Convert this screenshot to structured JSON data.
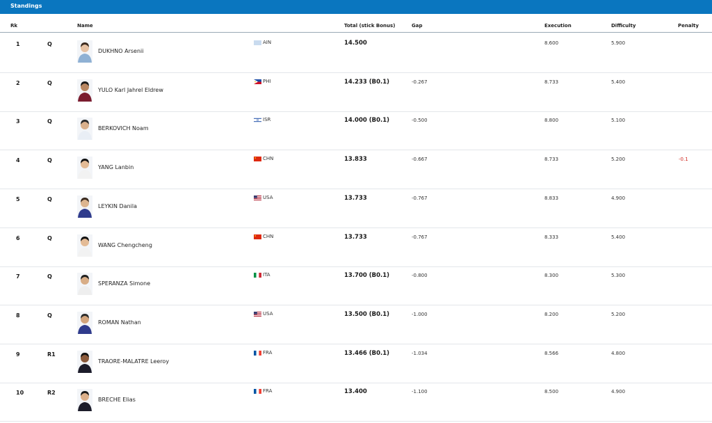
{
  "header": {
    "title": "Standings"
  },
  "columns": {
    "rk": "Rk",
    "name": "Name",
    "total": "Total (stick Bonus)",
    "gap": "Gap",
    "execution": "Execution",
    "difficulty": "Difficulty",
    "penalty": "Penalty"
  },
  "rows": [
    {
      "rk": "1",
      "q": "Q",
      "name": "DUKHNO Arsenii",
      "noc": "AIN",
      "flag": "AIN",
      "total": "14.500",
      "gap": "",
      "exec": "8.600",
      "diff": "5.900",
      "pen": "",
      "kit": "#8fb1d4",
      "skin": "#e6c2a4",
      "hair": "#3a2a1f"
    },
    {
      "rk": "2",
      "q": "Q",
      "name": "YULO Karl Jahrel Eldrew",
      "noc": "PHI",
      "flag": "PHI",
      "total": "14.233 (B0.1)",
      "gap": "-0.267",
      "exec": "8.733",
      "diff": "5.400",
      "pen": "",
      "kit": "#7a1c2f",
      "skin": "#b98762",
      "hair": "#1a1a1a"
    },
    {
      "rk": "3",
      "q": "Q",
      "name": "BERKOVICH Noam",
      "noc": "ISR",
      "flag": "ISR",
      "total": "14.000 (B0.1)",
      "gap": "-0.500",
      "exec": "8.800",
      "diff": "5.100",
      "pen": "",
      "kit": "#e9eef5",
      "skin": "#d9b08c",
      "hair": "#2a2a2a"
    },
    {
      "rk": "4",
      "q": "Q",
      "name": "YANG Lanbin",
      "noc": "CHN",
      "flag": "CHN",
      "total": "13.833",
      "gap": "-0.667",
      "exec": "8.733",
      "diff": "5.200",
      "pen": "-0.1",
      "kit": "#f2f2f2",
      "skin": "#e3bb96",
      "hair": "#111111"
    },
    {
      "rk": "5",
      "q": "Q",
      "name": "LEYKIN Danila",
      "noc": "USA",
      "flag": "USA",
      "total": "13.733",
      "gap": "-0.767",
      "exec": "8.833",
      "diff": "4.900",
      "pen": "",
      "kit": "#2f3b8c",
      "skin": "#dcb590",
      "hair": "#3a2a1f"
    },
    {
      "rk": "6",
      "q": "Q",
      "name": "WANG Chengcheng",
      "noc": "CHN",
      "flag": "CHN",
      "total": "13.733",
      "gap": "-0.767",
      "exec": "8.333",
      "diff": "5.400",
      "pen": "",
      "kit": "#f2f2f2",
      "skin": "#e3bb96",
      "hair": "#111111"
    },
    {
      "rk": "7",
      "q": "Q",
      "name": "SPERANZA Simone",
      "noc": "ITA",
      "flag": "ITA",
      "total": "13.700 (B0.1)",
      "gap": "-0.800",
      "exec": "8.300",
      "diff": "5.300",
      "pen": "",
      "kit": "#eeeeee",
      "skin": "#d8ad86",
      "hair": "#1f1f1f"
    },
    {
      "rk": "8",
      "q": "Q",
      "name": "ROMAN Nathan",
      "noc": "USA",
      "flag": "USA",
      "total": "13.500 (B0.1)",
      "gap": "-1.000",
      "exec": "8.200",
      "diff": "5.200",
      "pen": "",
      "kit": "#2f3b8c",
      "skin": "#d2a47c",
      "hair": "#2a2a2a"
    },
    {
      "rk": "9",
      "q": "R1",
      "name": "TRAORE-MALATRE Leeroy",
      "noc": "FRA",
      "flag": "FRA",
      "total": "13.466 (B0.1)",
      "gap": "-1.034",
      "exec": "8.566",
      "diff": "4.800",
      "pen": "",
      "kit": "#1c1c2a",
      "skin": "#8a5a3c",
      "hair": "#111111"
    },
    {
      "rk": "10",
      "q": "R2",
      "name": "BRECHE Elias",
      "noc": "FRA",
      "flag": "FRA",
      "total": "13.400",
      "gap": "-1.100",
      "exec": "8.500",
      "diff": "4.900",
      "pen": "",
      "kit": "#1c1c2a",
      "skin": "#dcb08a",
      "hair": "#1a1a1a"
    }
  ]
}
